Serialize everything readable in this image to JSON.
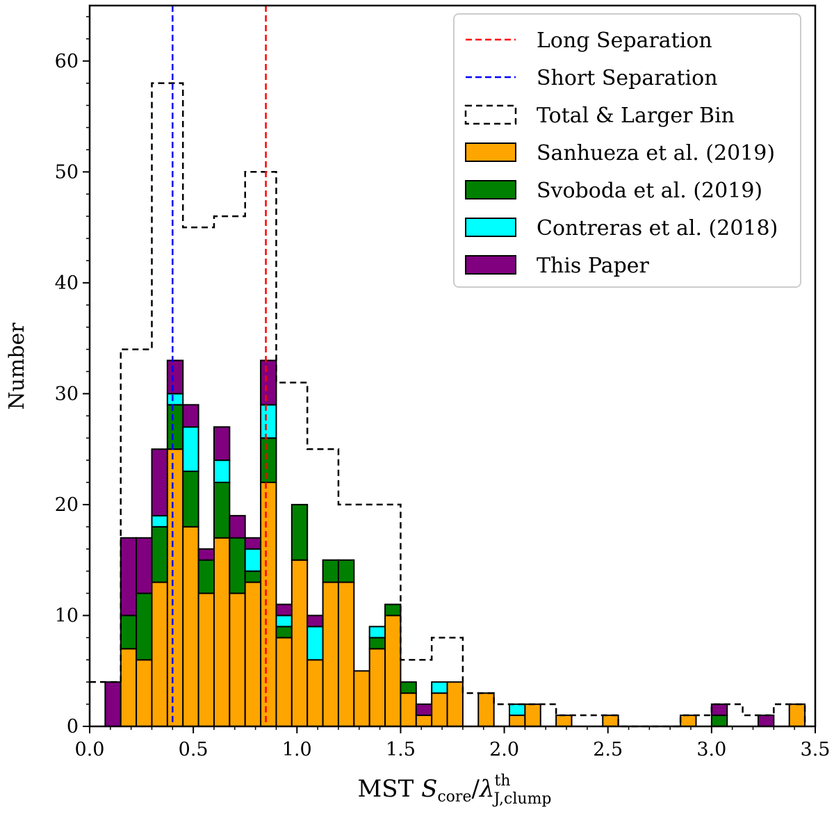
{
  "chart_data": {
    "type": "bar",
    "subtype": "stacked-histogram",
    "ylabel": "Number",
    "xlabel": {
      "prefix": "MST ",
      "var": "S",
      "sub": "core",
      "slash": "/",
      "var2": "λ",
      "sup": "th",
      "sub2": "J,clump"
    },
    "xlim": [
      0.0,
      3.5
    ],
    "ylim": [
      0,
      65
    ],
    "xticks": [
      0.0,
      0.5,
      1.0,
      1.5,
      2.0,
      2.5,
      3.0,
      3.5
    ],
    "xtick_labels": [
      "0.0",
      "0.5",
      "1.0",
      "1.5",
      "2.0",
      "2.5",
      "3.0",
      "3.5"
    ],
    "yticks": [
      0,
      10,
      20,
      30,
      40,
      50,
      60
    ],
    "ytick_labels": [
      "0",
      "10",
      "20",
      "30",
      "40",
      "50",
      "60"
    ],
    "bin_width": 0.075,
    "bin_starts": [
      0.075,
      0.15,
      0.225,
      0.3,
      0.375,
      0.45,
      0.525,
      0.6,
      0.675,
      0.75,
      0.825,
      0.9,
      0.975,
      1.05,
      1.125,
      1.2,
      1.275,
      1.35,
      1.425,
      1.5,
      1.575,
      1.65,
      1.725,
      1.875,
      2.025,
      2.1,
      2.25,
      2.475,
      2.85,
      3.0,
      3.225,
      3.375
    ],
    "series": [
      {
        "name": "Sanhueza et al. (2019)",
        "color": "#ffa500",
        "values": [
          0,
          7,
          6,
          13,
          25,
          18,
          12,
          17,
          12,
          13,
          22,
          8,
          15,
          6,
          13,
          13,
          5,
          7,
          10,
          3,
          1,
          3,
          4,
          3,
          1,
          2,
          1,
          1,
          1,
          0,
          0,
          2
        ]
      },
      {
        "name": "Svoboda et al. (2019)",
        "color": "#008000",
        "values": [
          0,
          3,
          6,
          5,
          4,
          5,
          3,
          5,
          5,
          1,
          4,
          1,
          5,
          0,
          2,
          2,
          0,
          1,
          1,
          1,
          0,
          0,
          0,
          0,
          0,
          0,
          0,
          0,
          0,
          1,
          0,
          0
        ]
      },
      {
        "name": "Contreras et al. (2018)",
        "color": "#00ffff",
        "values": [
          0,
          0,
          0,
          1,
          1,
          4,
          0,
          2,
          0,
          2,
          3,
          1,
          0,
          3,
          0,
          0,
          0,
          1,
          0,
          0,
          0,
          1,
          0,
          0,
          1,
          0,
          0,
          0,
          0,
          0,
          0,
          0
        ]
      },
      {
        "name": "This Paper",
        "color": "#800080",
        "values": [
          4,
          7,
          5,
          6,
          3,
          2,
          1,
          3,
          2,
          1,
          4,
          1,
          0,
          1,
          0,
          0,
          0,
          0,
          0,
          0,
          1,
          0,
          0,
          0,
          0,
          0,
          0,
          0,
          0,
          1,
          1,
          0
        ]
      }
    ],
    "total_larger_bin": {
      "name": "Total & Larger Bin",
      "edges": [
        0.0,
        0.15,
        0.3,
        0.45,
        0.6,
        0.75,
        0.9,
        1.05,
        1.2,
        1.35,
        1.5,
        1.65,
        1.8,
        1.95,
        2.1,
        2.25,
        2.4,
        2.55,
        2.7,
        2.85,
        3.0,
        3.15,
        3.3,
        3.45
      ],
      "values": [
        4,
        34,
        58,
        45,
        46,
        50,
        31,
        25,
        20,
        20,
        6,
        8,
        3,
        2,
        2,
        1,
        1,
        0,
        0,
        1,
        2,
        1,
        2
      ]
    },
    "vlines": [
      {
        "name": "Long Separation",
        "x": 0.85,
        "color": "#ff0000"
      },
      {
        "name": "Short Separation",
        "x": 0.4,
        "color": "#0000ff"
      }
    ],
    "legend_position": "upper right",
    "legend": [
      {
        "label": "Long Separation",
        "kind": "line",
        "color": "#ff0000"
      },
      {
        "label": "Short Separation",
        "kind": "line",
        "color": "#0000ff"
      },
      {
        "label": "Total & Larger Bin",
        "kind": "dashed-box",
        "color": "#000000"
      },
      {
        "label": "Sanhueza et al. (2019)",
        "kind": "patch",
        "color": "#ffa500"
      },
      {
        "label": "Svoboda et al. (2019)",
        "kind": "patch",
        "color": "#008000"
      },
      {
        "label": "Contreras et al. (2018)",
        "kind": "patch",
        "color": "#00ffff"
      },
      {
        "label": "This Paper",
        "kind": "patch",
        "color": "#800080"
      }
    ]
  }
}
